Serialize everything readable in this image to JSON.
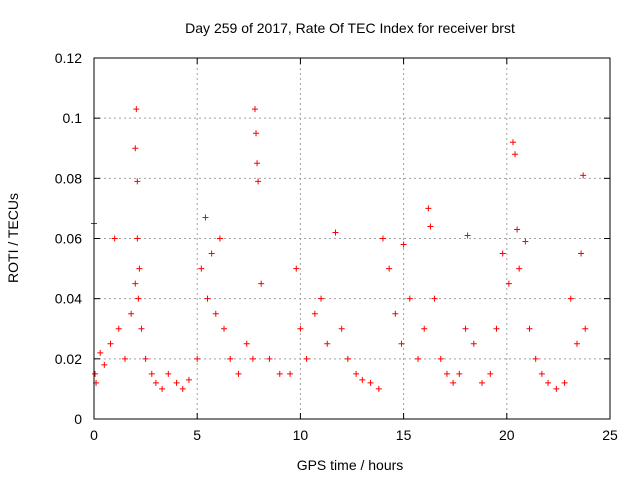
{
  "chart_data": {
    "type": "scatter",
    "title": "Day 259 of 2017, Rate Of TEC Index for receiver brst",
    "xlabel": "GPS time / hours",
    "ylabel": "ROTI / TECUs",
    "xlim": [
      0,
      25
    ],
    "ylim": [
      0,
      0.12
    ],
    "x_ticks": [
      0,
      5,
      10,
      15,
      20,
      25
    ],
    "x_tick_labels": [
      "0",
      "5",
      "10",
      "15",
      "20",
      "25"
    ],
    "y_ticks": [
      0,
      0.02,
      0.04,
      0.06,
      0.08,
      0.1,
      0.12
    ],
    "y_tick_labels": [
      "0",
      "0.02",
      "0.04",
      "0.06",
      "0.08",
      "0.1",
      "0.12"
    ],
    "grid": true,
    "marker": "plus",
    "series": [
      {
        "color": "#ff0000",
        "x": [
          0.0,
          0.05,
          0.1,
          0.3,
          0.5,
          0.8,
          1.0,
          1.2,
          1.5,
          1.8,
          2.0,
          2.0,
          2.05,
          2.1,
          2.1,
          2.15,
          2.2,
          2.3,
          2.5,
          2.8,
          3.0,
          3.3,
          3.6,
          4.0,
          4.3,
          4.6,
          5.0,
          5.2,
          5.4,
          5.5,
          5.7,
          5.9,
          6.1,
          6.3,
          6.6,
          7.0,
          7.4,
          7.7,
          7.8,
          7.85,
          7.9,
          7.95,
          8.1,
          8.5,
          9.0,
          9.5,
          9.8,
          10.0,
          10.3,
          10.7,
          11.0,
          11.3,
          11.7,
          12.0,
          12.3,
          12.7,
          13.0,
          13.4,
          13.8,
          14.0,
          14.3,
          14.6,
          14.9,
          15.0,
          15.3,
          15.7,
          16.0,
          16.2,
          16.3,
          16.5,
          16.8,
          17.1,
          17.4,
          17.7,
          18.0,
          18.1,
          18.4,
          18.8,
          19.2,
          19.5,
          19.8,
          20.1,
          20.3,
          20.4,
          20.5,
          20.6,
          20.9,
          21.1,
          21.4,
          21.7,
          22.0,
          22.4,
          22.8,
          23.1,
          23.4,
          23.6,
          23.7,
          23.8
        ],
        "y": [
          0.065,
          0.015,
          0.012,
          0.022,
          0.018,
          0.025,
          0.06,
          0.03,
          0.02,
          0.035,
          0.045,
          0.09,
          0.103,
          0.079,
          0.06,
          0.04,
          0.05,
          0.03,
          0.02,
          0.015,
          0.012,
          0.01,
          0.015,
          0.012,
          0.01,
          0.013,
          0.02,
          0.05,
          0.067,
          0.04,
          0.055,
          0.035,
          0.06,
          0.03,
          0.02,
          0.015,
          0.025,
          0.02,
          0.103,
          0.095,
          0.085,
          0.079,
          0.045,
          0.02,
          0.015,
          0.015,
          0.05,
          0.03,
          0.02,
          0.035,
          0.04,
          0.025,
          0.062,
          0.03,
          0.02,
          0.015,
          0.013,
          0.012,
          0.01,
          0.06,
          0.05,
          0.035,
          0.025,
          0.058,
          0.04,
          0.02,
          0.03,
          0.07,
          0.064,
          0.04,
          0.02,
          0.015,
          0.012,
          0.015,
          0.03,
          0.061,
          0.025,
          0.012,
          0.015,
          0.03,
          0.055,
          0.045,
          0.092,
          0.088,
          0.063,
          0.05,
          0.059,
          0.03,
          0.02,
          0.015,
          0.012,
          0.01,
          0.012,
          0.04,
          0.025,
          0.055,
          0.081,
          0.03
        ]
      }
    ]
  }
}
